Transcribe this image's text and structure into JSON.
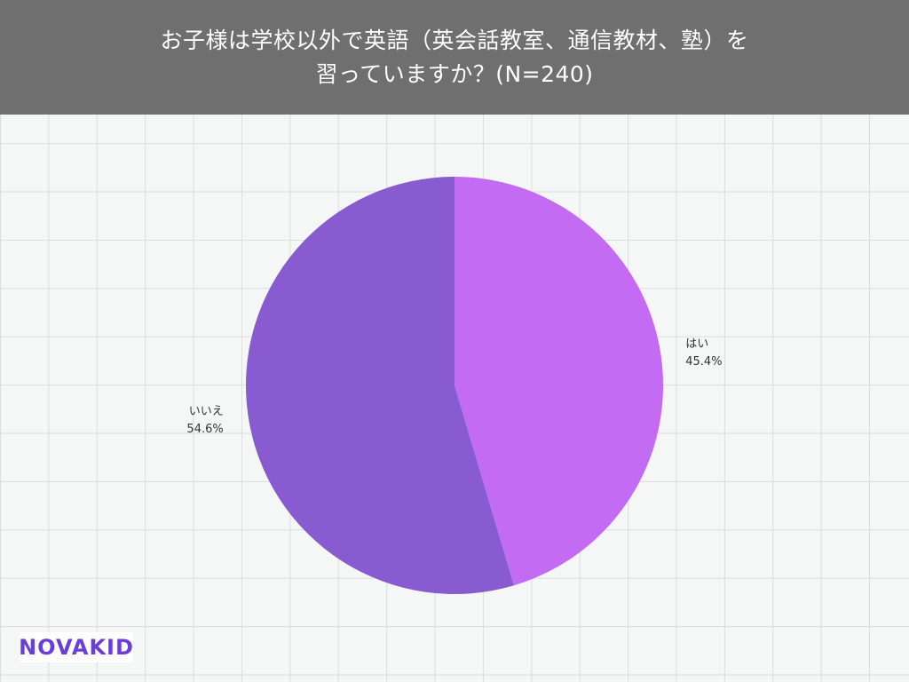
{
  "header": {
    "title_line1": "お子様は学校以外で英語（英会話教室、通信教材、塾）を",
    "title_line2": "習っていますか？(N=240)"
  },
  "chart_data": {
    "type": "pie",
    "title": "お子様は学校以外で英語（英会話教室、通信教材、塾）を習っていますか？(N=240)",
    "categories": [
      "はい",
      "いいえ"
    ],
    "values": [
      45.4,
      54.6
    ],
    "value_labels": [
      "45.4%",
      "54.6%"
    ],
    "colors": [
      "#c36cf3",
      "#895bd1"
    ],
    "start": "12 o'clock",
    "direction": "clockwise",
    "grid": true
  },
  "logo": {
    "text": "NOVAKID",
    "color": "#6a3fd9"
  }
}
